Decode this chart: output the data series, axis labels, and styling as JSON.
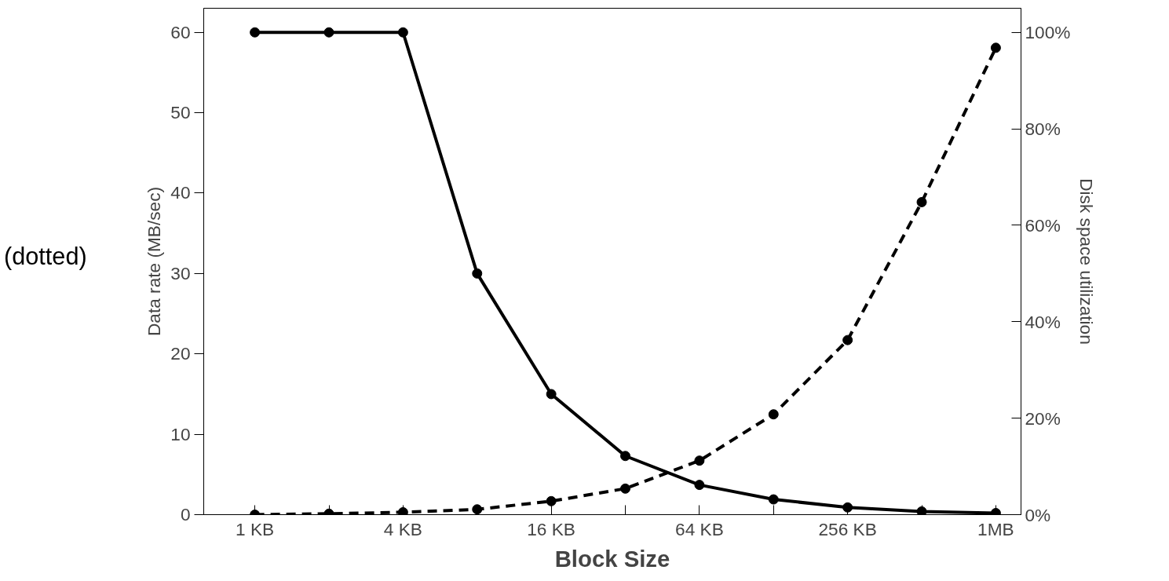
{
  "chart_data": {
    "type": "line",
    "xlabel": "Block Size",
    "ylabel": "Data rate (MB/sec)",
    "y2label": "Disk space utilization",
    "categories": [
      "1 KB",
      null,
      "4 KB",
      null,
      "16 KB",
      null,
      "64 KB",
      null,
      "256 KB",
      null,
      "1MB"
    ],
    "series": [
      {
        "color": "#000000",
        "line_style": "solid",
        "values": [
          60,
          60,
          60,
          30,
          15,
          7.3,
          3.7,
          1.9,
          0.9,
          0.4,
          0.2
        ]
      },
      {
        "color": "#000000",
        "line_style": "dashed",
        "axis": "y2",
        "values": [
          0,
          0.2,
          0.5,
          1.1,
          2.8,
          5.4,
          11.2,
          20.8,
          36.2,
          64.8,
          96.8
        ]
      }
    ],
    "ylim": [
      0,
      63
    ],
    "yticks": [
      0,
      10,
      20,
      30,
      40,
      50,
      60
    ],
    "y2lim": [
      0,
      105
    ],
    "y2ticks": [
      {
        "value": 0,
        "label": "0%"
      },
      {
        "value": 20,
        "label": "20%"
      },
      {
        "value": 40,
        "label": "40%"
      },
      {
        "value": 60,
        "label": "60%"
      },
      {
        "value": 80,
        "label": "80%"
      },
      {
        "value": 100,
        "label": "100%"
      }
    ],
    "marker": "circle",
    "grid": false,
    "annotations": [
      "(dotted)"
    ]
  }
}
